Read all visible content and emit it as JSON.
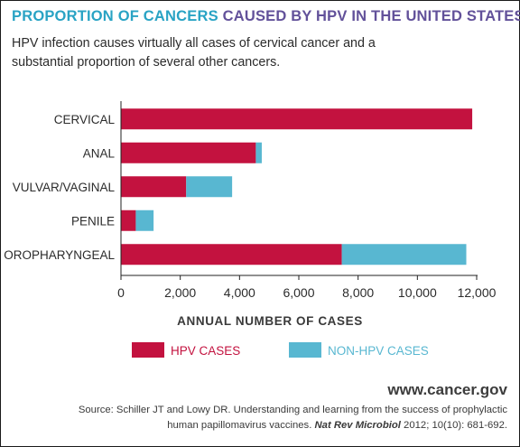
{
  "header": {
    "title_part1": "PROPORTION OF CANCERS",
    "title_part2": "CAUSED BY HPV IN THE UNITED STATES",
    "subtitle": "HPV infection causes virtually all cases of cervical cancer and a substantial proportion of several other cancers."
  },
  "colors": {
    "hpv": "#c3123f",
    "non_hpv": "#58b7d1",
    "title_blue": "#29a3c4",
    "title_purple": "#62519a"
  },
  "chart_data": {
    "type": "bar",
    "orientation": "horizontal",
    "stacked": true,
    "categories": [
      "CERVICAL",
      "ANAL",
      "VULVAR/VAGINAL",
      "PENILE",
      "OROPHARYNGEAL"
    ],
    "series": [
      {
        "name": "HPV CASES",
        "values": [
          11850,
          4550,
          2200,
          500,
          7450
        ]
      },
      {
        "name": "NON-HPV CASES",
        "values": [
          0,
          200,
          1550,
          600,
          4200
        ]
      }
    ],
    "xlabel": "ANNUAL NUMBER OF CASES",
    "xlim": [
      0,
      12000
    ],
    "xticks": [
      "0",
      "2,000",
      "4,000",
      "6,000",
      "8,000",
      "10,000",
      "12,000"
    ],
    "grid": false,
    "legend_position": "bottom"
  },
  "footer": {
    "site": "www.cancer.gov",
    "source_line1": "Source: Schiller JT and Lowy DR. Understanding and learning from the success of prophylactic",
    "source_line2_a": "human papillomavirus vaccines. ",
    "source_journal": "Nat Rev Microbiol",
    "source_line2_b": " 2012; 10(10): 681-692."
  }
}
